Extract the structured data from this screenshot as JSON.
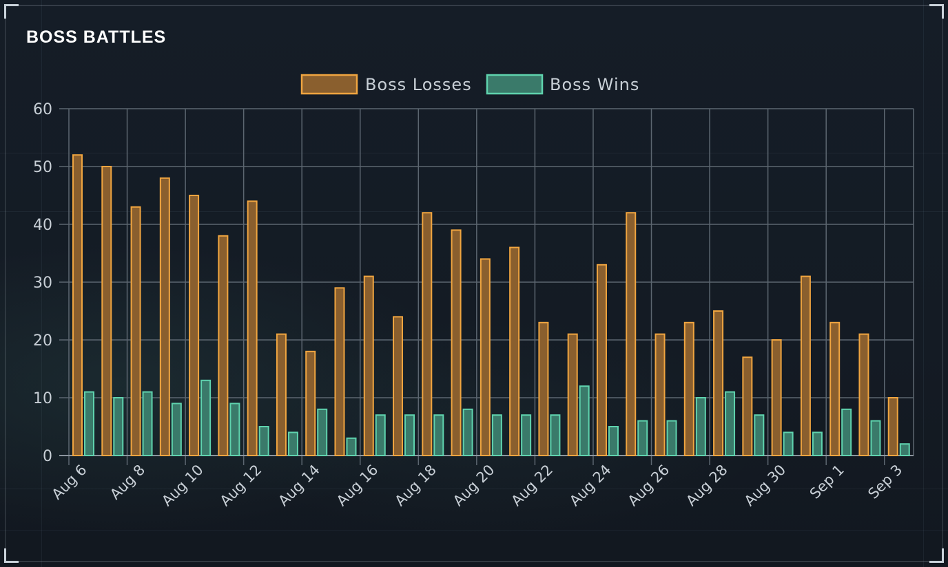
{
  "panel": {
    "title": "BOSS BATTLES"
  },
  "colors": {
    "losses_fill": "#8a5f2e",
    "losses_stroke": "#f0a540",
    "wins_fill": "#3a7a6a",
    "wins_stroke": "#5fd3ae",
    "grid": "#5c6670",
    "tick_text": "#c8cfd6"
  },
  "chart_data": {
    "type": "bar",
    "title": "BOSS BATTLES",
    "xlabel": "",
    "ylabel": "",
    "ylim": [
      0,
      60
    ],
    "yticks": [
      0,
      10,
      20,
      30,
      40,
      50,
      60
    ],
    "grid": true,
    "legend_position": "top-center",
    "categories": [
      "Aug 6",
      "Aug 7",
      "Aug 8",
      "Aug 9",
      "Aug 10",
      "Aug 11",
      "Aug 12",
      "Aug 13",
      "Aug 14",
      "Aug 15",
      "Aug 16",
      "Aug 17",
      "Aug 18",
      "Aug 19",
      "Aug 20",
      "Aug 21",
      "Aug 22",
      "Aug 23",
      "Aug 24",
      "Aug 25",
      "Aug 26",
      "Aug 27",
      "Aug 28",
      "Aug 29",
      "Aug 30",
      "Aug 31",
      "Sep 1",
      "Sep 2",
      "Sep 3"
    ],
    "tick_labels": [
      "Aug 6",
      "Aug 8",
      "Aug 10",
      "Aug 12",
      "Aug 14",
      "Aug 16",
      "Aug 18",
      "Aug 20",
      "Aug 22",
      "Aug 24",
      "Aug 26",
      "Aug 28",
      "Aug 30",
      "Sep 1",
      "Sep 3"
    ],
    "series": [
      {
        "name": "Boss Losses",
        "values": [
          52,
          50,
          43,
          48,
          45,
          38,
          44,
          21,
          18,
          29,
          31,
          24,
          42,
          39,
          34,
          36,
          23,
          21,
          33,
          42,
          21,
          23,
          25,
          17,
          20,
          31,
          23,
          21,
          10
        ]
      },
      {
        "name": "Boss Wins",
        "values": [
          11,
          10,
          11,
          9,
          13,
          9,
          5,
          4,
          8,
          3,
          7,
          7,
          7,
          8,
          7,
          7,
          7,
          12,
          5,
          6,
          6,
          10,
          11,
          7,
          4,
          4,
          8,
          6,
          2
        ]
      }
    ]
  }
}
